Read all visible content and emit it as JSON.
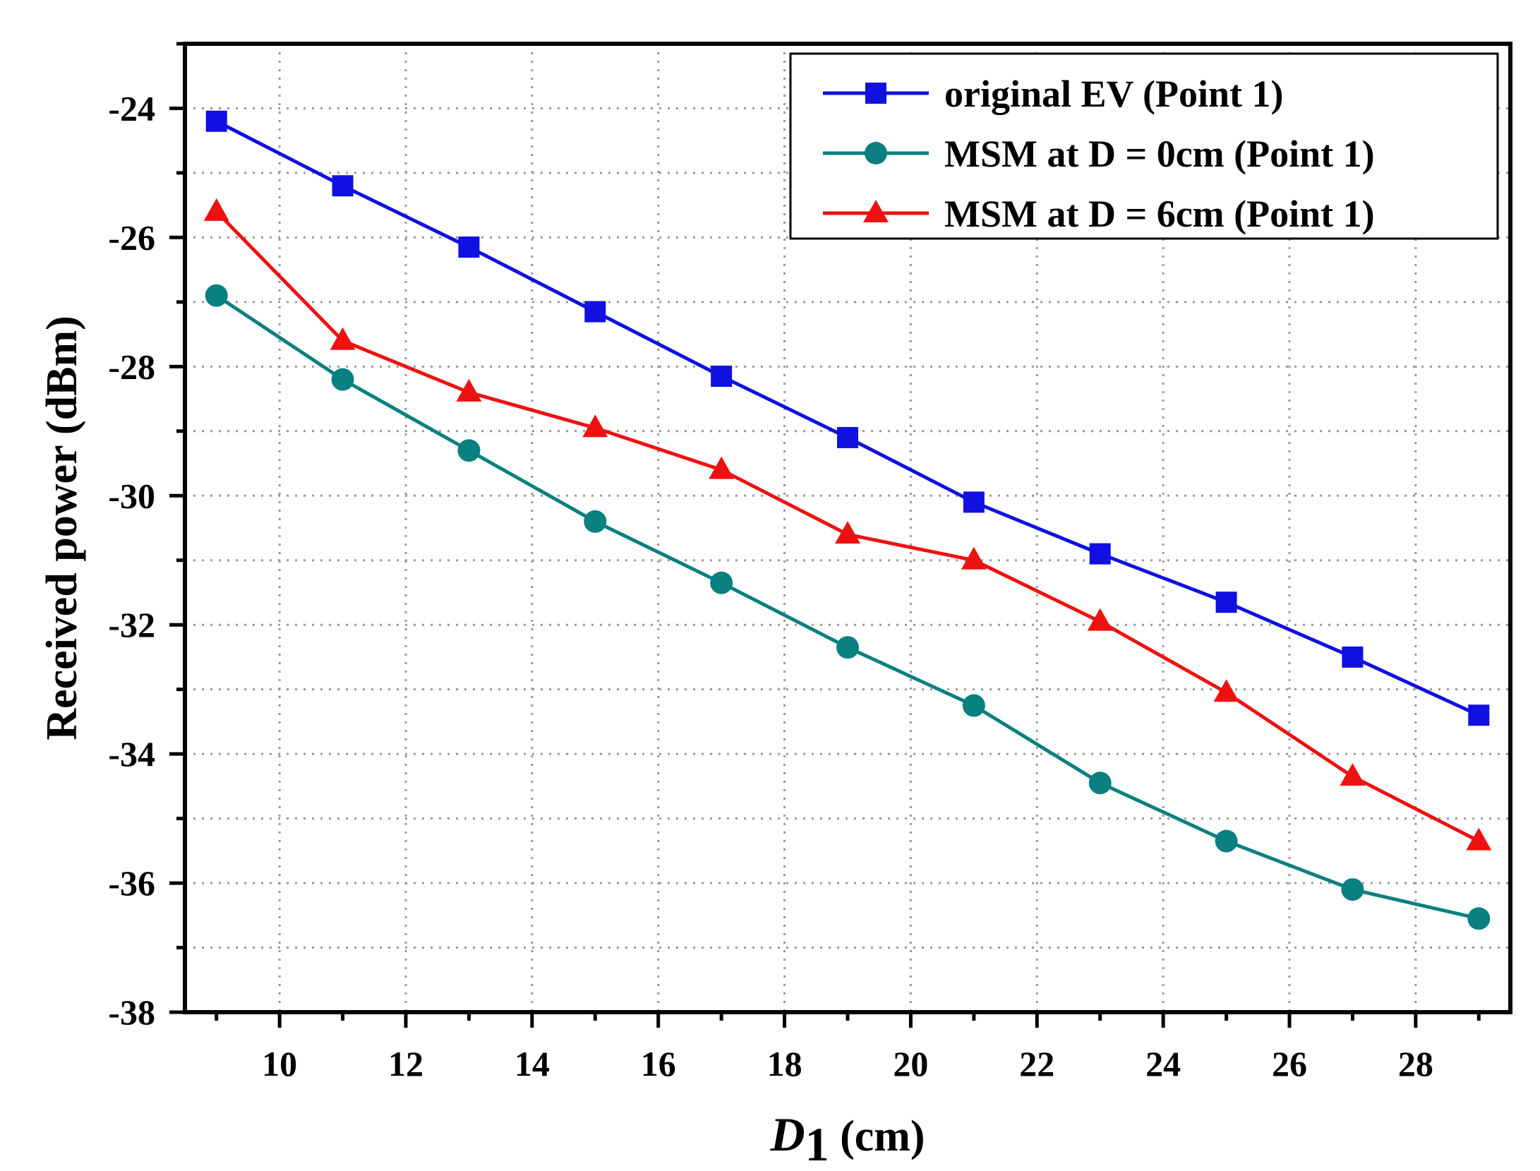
{
  "chart_data": {
    "type": "line",
    "title": "",
    "xlabel": {
      "italic": "D",
      "subscript": "1",
      "rest": " (cm)"
    },
    "ylabel": "Received power (dBm)",
    "xlim": [
      8.5,
      29.5
    ],
    "ylim": [
      -38,
      -23
    ],
    "xticks": [
      10,
      12,
      14,
      16,
      18,
      20,
      22,
      24,
      26,
      28
    ],
    "yticks": [
      -38,
      -36,
      -34,
      -32,
      -30,
      -28,
      -26,
      -24
    ],
    "grid": true,
    "legend_position": "top-right",
    "x": [
      9,
      11,
      13,
      15,
      17,
      19,
      21,
      23,
      25,
      27,
      29
    ],
    "series": [
      {
        "name": "original EV (Point 1)",
        "color": "#1010e0",
        "marker": "square",
        "values": [
          -24.2,
          -25.2,
          -26.15,
          -27.15,
          -28.15,
          -29.1,
          -30.1,
          -30.9,
          -31.65,
          -32.5,
          -33.4
        ]
      },
      {
        "name": "MSM at D = 0cm (Point 1)",
        "color": "#0a8080",
        "marker": "circle",
        "values": [
          -26.9,
          -28.2,
          -29.3,
          -30.4,
          -31.35,
          -32.35,
          -33.25,
          -34.45,
          -35.35,
          -36.1,
          -36.55
        ]
      },
      {
        "name": "MSM at D = 6cm (Point 1)",
        "color": "#ee1111",
        "marker": "triangle",
        "values": [
          -25.6,
          -27.6,
          -28.4,
          -28.95,
          -29.6,
          -30.6,
          -31.0,
          -31.95,
          -33.05,
          -34.35,
          -35.35
        ]
      }
    ]
  }
}
